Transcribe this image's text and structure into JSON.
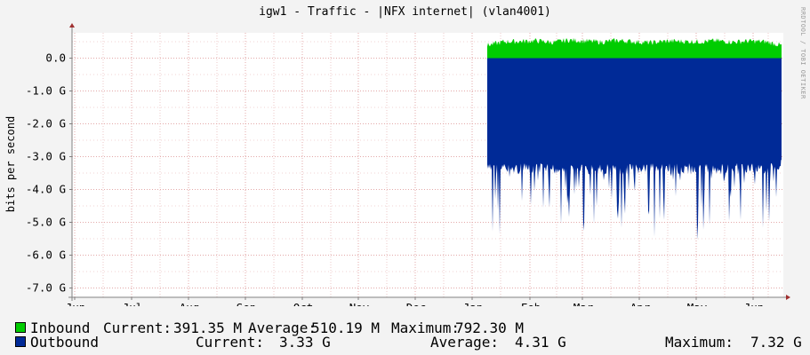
{
  "title": "igw1 - Traffic - |NFX internet| (vlan4001)",
  "watermark": "RRDTOOL / TOBI OETIKER",
  "colors": {
    "inbound": "#00cc00",
    "outbound": "#002a97",
    "grid": "#e3a8a8",
    "axis": "#808080"
  },
  "chart_data": {
    "type": "area",
    "ylabel": "bits per second",
    "ylim": [
      -7.3,
      0.8
    ],
    "y_ticks": [
      {
        "value": 0,
        "label": "0.0"
      },
      {
        "value": -1,
        "label": "-1.0 G"
      },
      {
        "value": -2,
        "label": "-2.0 G"
      },
      {
        "value": -3,
        "label": "-3.0 G"
      },
      {
        "value": -4,
        "label": "-4.0 G"
      },
      {
        "value": -5,
        "label": "-5.0 G"
      },
      {
        "value": -6,
        "label": "-6.0 G"
      },
      {
        "value": -7,
        "label": "-7.0 G"
      }
    ],
    "x_ticks": [
      "Jun",
      "Jul",
      "Aug",
      "Sep",
      "Oct",
      "Nov",
      "Dec",
      "Jan",
      "Feb",
      "Mar",
      "Apr",
      "May",
      "Jun"
    ],
    "grid": true,
    "data_start": "mid-Jan",
    "series": [
      {
        "name": "Inbound",
        "values_gbps": [
          0.39,
          0.5,
          0.51,
          0.53,
          0.48,
          0.55,
          0.52,
          0.49,
          0.54,
          0.5,
          0.47,
          0.52,
          0.51,
          0.5,
          0.53,
          0.49,
          0.52,
          0.5,
          0.39
        ]
      },
      {
        "name": "Outbound",
        "values_gbps": [
          -5.8,
          -4.2,
          -4.6,
          -3.9,
          -4.5,
          -4.1,
          -5.0,
          -3.8,
          -4.7,
          -4.3,
          -4.9,
          -4.0,
          -4.4,
          -5.2,
          -3.9,
          -4.6,
          -4.2,
          -4.8,
          -3.33
        ]
      }
    ]
  },
  "legend": [
    {
      "name": "Inbound",
      "current_label": "Current:",
      "current": "391.35 M",
      "average_label": "Average:",
      "average": "510.19 M",
      "maximum_label": "Maximum:",
      "maximum": "792.30 M"
    },
    {
      "name": "Outbound",
      "current_label": "Current:",
      "current": "3.33 G",
      "average_label": "Average:",
      "average": "4.31 G",
      "maximum_label": "Maximum:",
      "maximum": "7.32 G"
    }
  ]
}
